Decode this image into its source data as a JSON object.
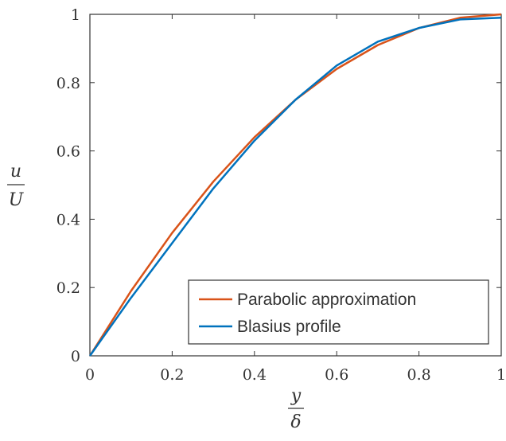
{
  "chart_data": {
    "type": "line",
    "x_label": {
      "numerator": "y",
      "denominator": "δ"
    },
    "y_label": {
      "numerator": "u",
      "denominator": "U"
    },
    "x": [
      0,
      0.1,
      0.2,
      0.3,
      0.4,
      0.5,
      0.6,
      0.7,
      0.8,
      0.9,
      1
    ],
    "series": [
      {
        "name": "Parabolic approximation",
        "color": "#d95319",
        "values": [
          0,
          0.19,
          0.36,
          0.51,
          0.64,
          0.75,
          0.84,
          0.91,
          0.96,
          0.99,
          1
        ]
      },
      {
        "name": "Blasius profile",
        "color": "#0072bd",
        "values": [
          0,
          0.17,
          0.33,
          0.49,
          0.63,
          0.75,
          0.85,
          0.92,
          0.96,
          0.985,
          0.99
        ]
      }
    ],
    "xlim": [
      0,
      1
    ],
    "ylim": [
      0,
      1
    ],
    "xticks": [
      0,
      0.2,
      0.4,
      0.6,
      0.8,
      1
    ],
    "yticks": [
      0,
      0.2,
      0.4,
      0.6,
      0.8,
      1
    ],
    "legend": "lower-right"
  }
}
